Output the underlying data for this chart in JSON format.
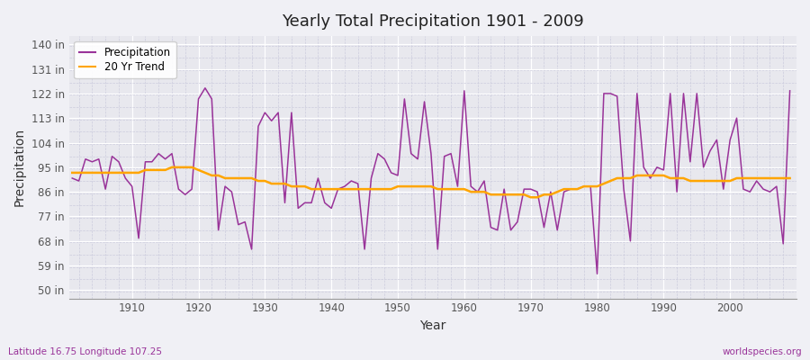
{
  "title": "Yearly Total Precipitation 1901 - 2009",
  "xlabel": "Year",
  "ylabel": "Precipitation",
  "lat_lon_label": "Latitude 16.75 Longitude 107.25",
  "worldspecies_label": "worldspecies.org",
  "years": [
    1901,
    1902,
    1903,
    1904,
    1905,
    1906,
    1907,
    1908,
    1909,
    1910,
    1911,
    1912,
    1913,
    1914,
    1915,
    1916,
    1917,
    1918,
    1919,
    1920,
    1921,
    1922,
    1923,
    1924,
    1925,
    1926,
    1927,
    1928,
    1929,
    1930,
    1931,
    1932,
    1933,
    1934,
    1935,
    1936,
    1937,
    1938,
    1939,
    1940,
    1941,
    1942,
    1943,
    1944,
    1945,
    1946,
    1947,
    1948,
    1949,
    1950,
    1951,
    1952,
    1953,
    1954,
    1955,
    1956,
    1957,
    1958,
    1959,
    1960,
    1961,
    1962,
    1963,
    1964,
    1965,
    1966,
    1967,
    1968,
    1969,
    1970,
    1971,
    1972,
    1973,
    1974,
    1975,
    1976,
    1977,
    1978,
    1979,
    1980,
    1981,
    1982,
    1983,
    1984,
    1985,
    1986,
    1987,
    1988,
    1989,
    1990,
    1991,
    1992,
    1993,
    1994,
    1995,
    1996,
    1997,
    1998,
    1999,
    2000,
    2001,
    2002,
    2003,
    2004,
    2005,
    2006,
    2007,
    2008,
    2009
  ],
  "precip": [
    91,
    90,
    98,
    97,
    98,
    87,
    99,
    97,
    91,
    88,
    69,
    97,
    97,
    100,
    98,
    100,
    87,
    85,
    87,
    120,
    124,
    120,
    72,
    88,
    86,
    74,
    75,
    65,
    110,
    115,
    112,
    115,
    82,
    115,
    80,
    82,
    82,
    91,
    82,
    80,
    87,
    88,
    90,
    89,
    65,
    91,
    100,
    98,
    93,
    92,
    120,
    100,
    98,
    119,
    100,
    65,
    99,
    100,
    88,
    123,
    88,
    86,
    90,
    73,
    72,
    87,
    72,
    75,
    87,
    87,
    86,
    73,
    86,
    72,
    86,
    87,
    87,
    88,
    88,
    56,
    122,
    122,
    121,
    87,
    68,
    122,
    95,
    91,
    95,
    94,
    122,
    86,
    122,
    97,
    122,
    95,
    101,
    105,
    87,
    105,
    113,
    87,
    86,
    90,
    87,
    86,
    88,
    67,
    123
  ],
  "trend": [
    93,
    93,
    93,
    93,
    93,
    93,
    93,
    93,
    93,
    93,
    93,
    94,
    94,
    94,
    94,
    95,
    95,
    95,
    95,
    94,
    93,
    92,
    92,
    91,
    91,
    91,
    91,
    91,
    90,
    90,
    89,
    89,
    89,
    88,
    88,
    88,
    87,
    87,
    87,
    87,
    87,
    87,
    87,
    87,
    87,
    87,
    87,
    87,
    87,
    88,
    88,
    88,
    88,
    88,
    88,
    87,
    87,
    87,
    87,
    87,
    86,
    86,
    86,
    85,
    85,
    85,
    85,
    85,
    85,
    84,
    84,
    85,
    85,
    86,
    87,
    87,
    87,
    88,
    88,
    88,
    89,
    90,
    91,
    91,
    91,
    92,
    92,
    92,
    92,
    92,
    91,
    91,
    91,
    90,
    90,
    90,
    90,
    90,
    90,
    90,
    91,
    91,
    91,
    91,
    91,
    91,
    91,
    91,
    91
  ],
  "precip_color": "#993399",
  "trend_color": "#FFA500",
  "bg_color": "#F0F0F5",
  "plot_bg_color": "#E8E8EE",
  "grid_color_major": "#FFFFFF",
  "grid_color_minor": "#CCCCDD",
  "yticks": [
    50,
    59,
    68,
    77,
    86,
    95,
    104,
    113,
    122,
    131,
    140
  ],
  "ylim": [
    47,
    143
  ],
  "xlim": [
    1900.5,
    2010
  ]
}
